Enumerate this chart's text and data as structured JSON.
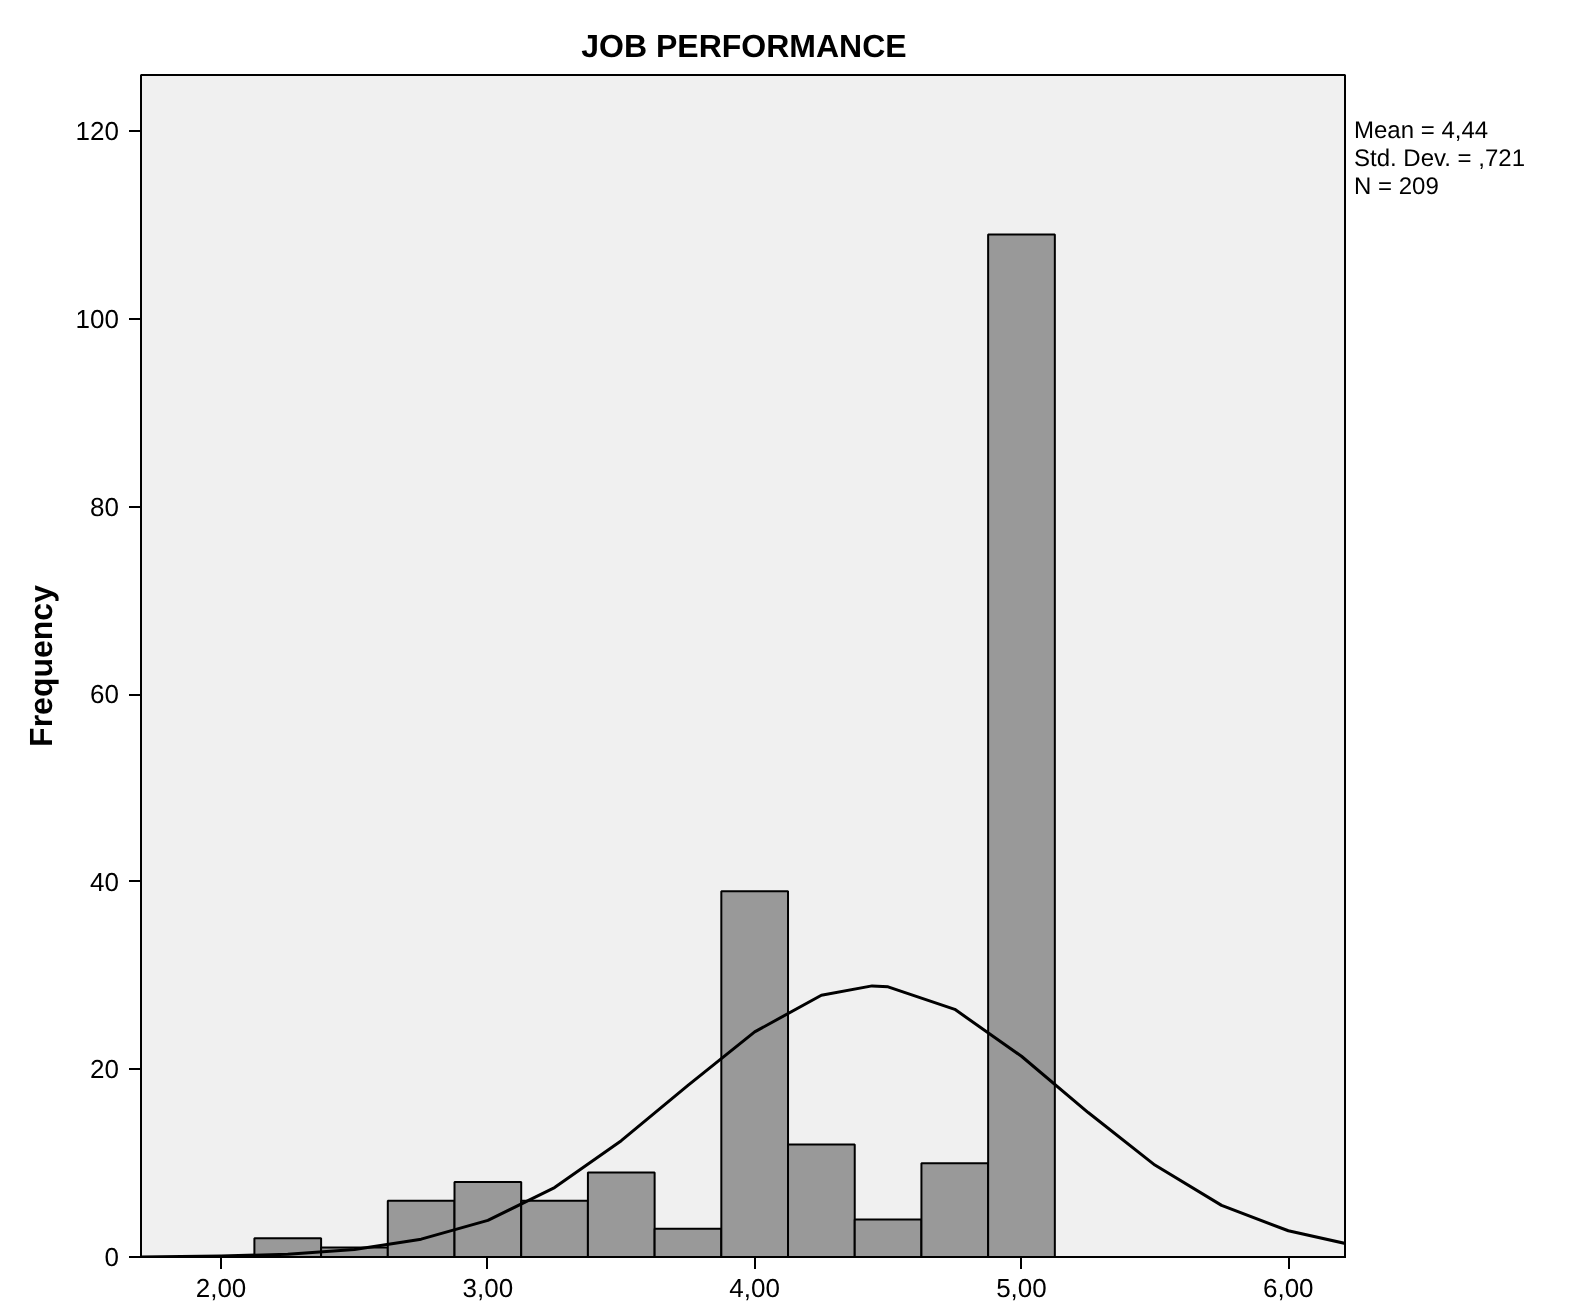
{
  "chart_data": {
    "type": "histogram",
    "title": "JOB PERFORMANCE",
    "ylabel": "Frequency",
    "bins": [
      2.125,
      2.375,
      2.625,
      2.875,
      3.125,
      3.375,
      3.625,
      3.875,
      4.125,
      4.375,
      4.625,
      4.875,
      5.125
    ],
    "values": [
      2,
      1,
      6,
      8,
      6,
      9,
      3,
      39,
      12,
      4,
      10,
      109
    ],
    "color": "#999999",
    "series": [
      {
        "type": "line",
        "color": "#000000",
        "x": [
          1.7,
          2.0,
          2.25,
          2.5,
          2.75,
          3.0,
          3.25,
          3.5,
          3.75,
          4.0,
          4.25,
          4.44,
          4.5,
          4.75,
          5.0,
          5.25,
          5.5,
          5.75,
          6.0,
          6.22
        ],
        "values": [
          0.0,
          0.1,
          0.3,
          0.8,
          1.9,
          3.9,
          7.4,
          12.4,
          18.3,
          24.0,
          27.9,
          28.9,
          28.8,
          26.4,
          21.4,
          15.4,
          9.8,
          5.5,
          2.8,
          1.4
        ]
      }
    ],
    "xlim": [
      1.7,
      6.22
    ],
    "xticks": [
      {
        "value": 2,
        "label": "2,00"
      },
      {
        "value": 3,
        "label": "3,00"
      },
      {
        "value": 4,
        "label": "4,00"
      },
      {
        "value": 5,
        "label": "5,00"
      },
      {
        "value": 6,
        "label": "6,00"
      }
    ],
    "ylim": [
      0,
      126
    ],
    "yticks": [
      0,
      20,
      40,
      60,
      80,
      100,
      120
    ],
    "grid": false,
    "annotations": [
      "Mean = 4,44",
      "Std. Dev. = ,721",
      "N = 209"
    ]
  }
}
